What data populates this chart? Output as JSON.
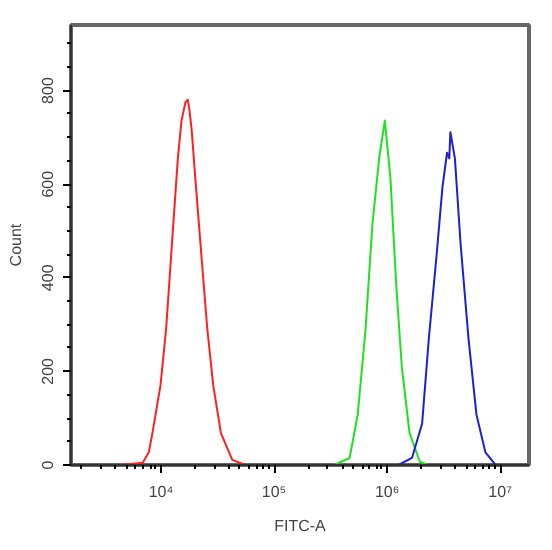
{
  "chart_data": {
    "type": "line",
    "xlabel": "FITC-A",
    "ylabel": "Count",
    "log": "x",
    "grid": false,
    "marker": "none",
    "line_style": "solid",
    "xlim": [
      1600,
      18000000
    ],
    "ylim": [
      0,
      940
    ],
    "xticks": [
      {
        "value": 10000,
        "label": "10⁴"
      },
      {
        "value": 100000,
        "label": "10⁵"
      },
      {
        "value": 1000000,
        "label": "10⁶"
      },
      {
        "value": 10000000,
        "label": "10⁷"
      }
    ],
    "yticks": [
      0,
      200,
      400,
      600,
      800
    ],
    "series": [
      {
        "color": "#ff2020",
        "x": [
          4300,
          6900,
          7800,
          8400,
          9900,
          11100,
          12500,
          14100,
          15200,
          16500,
          17300,
          17900,
          18700,
          20100,
          22700,
          25700,
          29000,
          33900,
          42700,
          56000
        ],
        "values": [
          0,
          5,
          27,
          68,
          170,
          290,
          472,
          655,
          736,
          776,
          780,
          756,
          715,
          614,
          452,
          290,
          170,
          68,
          11,
          0
        ]
      },
      {
        "color": "#20e020",
        "x": [
          340000,
          466000,
          550000,
          645000,
          741000,
          851000,
          955000,
          1070000,
          1200000,
          1350000,
          1580000,
          1950000,
          2290000
        ],
        "values": [
          0,
          15,
          108,
          290,
          513,
          655,
          736,
          614,
          391,
          209,
          68,
          7,
          0
        ]
      },
      {
        "color": "#2020d0",
        "x": [
          1260000,
          1660000,
          2040000,
          2340000,
          2750000,
          3090000,
          3390000,
          3550000,
          3630000,
          3980000,
          4470000,
          5250000,
          6170000,
          7410000,
          9120000
        ],
        "values": [
          0,
          15,
          88,
          270,
          452,
          594,
          667,
          655,
          711,
          655,
          472,
          270,
          108,
          27,
          0
        ]
      }
    ]
  }
}
